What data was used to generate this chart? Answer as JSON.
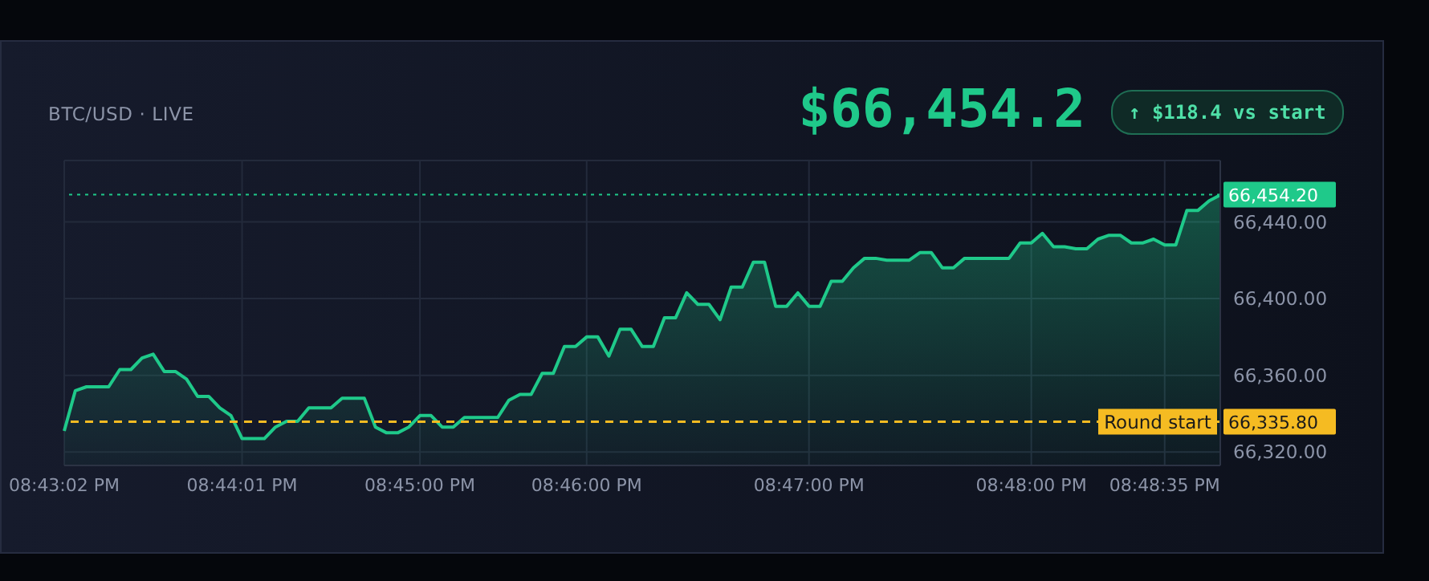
{
  "chart_data": {
    "type": "area",
    "title": "BTC/USD · LIVE",
    "annotations": [
      "$66,454.2",
      "↑ $118.4 vs start",
      {
        "text": "Round start",
        "y": 66335.8
      }
    ],
    "categories": [
      "08:43:02 PM",
      null,
      null,
      null,
      null,
      null,
      null,
      null,
      null,
      null,
      null,
      null,
      null,
      null,
      null,
      null,
      "08:44:01 PM",
      null,
      null,
      null,
      null,
      null,
      null,
      null,
      null,
      null,
      null,
      null,
      null,
      null,
      null,
      null,
      "08:45:00 PM",
      null,
      null,
      null,
      null,
      null,
      null,
      null,
      null,
      null,
      null,
      null,
      null,
      null,
      null,
      "08:46:00 PM",
      null,
      null,
      null,
      null,
      null,
      null,
      null,
      null,
      null,
      null,
      null,
      null,
      null,
      null,
      null,
      null,
      null,
      null,
      null,
      "08:47:00 PM",
      null,
      null,
      null,
      null,
      null,
      null,
      null,
      null,
      null,
      null,
      null,
      null,
      null,
      null,
      null,
      null,
      null,
      null,
      null,
      "08:48:00 PM",
      null,
      null,
      null,
      null,
      null,
      null,
      null,
      null,
      null,
      null,
      null,
      "08:48:35 PM",
      null,
      null,
      null,
      null,
      null
    ],
    "series": [
      {
        "color": "#1fc98a",
        "values": [
          66331,
          66352,
          66354,
          66354,
          66354,
          66363,
          66363,
          66369,
          66371,
          66362,
          66362,
          66358,
          66349,
          66349,
          66343,
          66339,
          66327,
          66327,
          66327,
          66333,
          66336,
          66336,
          66343,
          66343,
          66343,
          66348,
          66348,
          66348,
          66333,
          66330,
          66330,
          66333,
          66339,
          66339,
          66333,
          66333,
          66338,
          66338,
          66338,
          66338,
          66347,
          66350,
          66350,
          66361,
          66361,
          66375,
          66375,
          66380,
          66380,
          66370,
          66384,
          66384,
          66375,
          66375,
          66390,
          66390,
          66403,
          66397,
          66397,
          66389,
          66406,
          66406,
          66419,
          66419,
          66396,
          66396,
          66403,
          66396,
          66396,
          66409,
          66409,
          66416,
          66421,
          66421,
          66420,
          66420,
          66420,
          66424,
          66424,
          66416,
          66416,
          66421,
          66421,
          66421,
          66421,
          66421,
          66429,
          66429,
          66434,
          66427,
          66427,
          66426,
          66426,
          66431,
          66433,
          66433,
          66429,
          66429,
          66431,
          66428,
          66428,
          66446,
          66446,
          66451,
          66454
        ]
      }
    ],
    "ylim": [
      66313,
      66472
    ],
    "yticks": [
      {
        "value": 66320,
        "label": "66,320.00"
      },
      {
        "value": 66360,
        "label": "66,360.00"
      },
      {
        "value": 66400,
        "label": "66,400.00"
      },
      {
        "value": 66440,
        "label": "66,440.00"
      }
    ],
    "ref_lines": [
      {
        "axis": "y",
        "value": 66454.2,
        "label": "66,454.20",
        "color": "#1fc98a",
        "line_style": "dotted"
      },
      {
        "axis": "y",
        "value": 66335.8,
        "label": "66,335.80",
        "color": "#f5bb22",
        "line_style": "dashed"
      }
    ],
    "grid": true,
    "legend": false,
    "marker": "none",
    "line_style": "solid"
  }
}
